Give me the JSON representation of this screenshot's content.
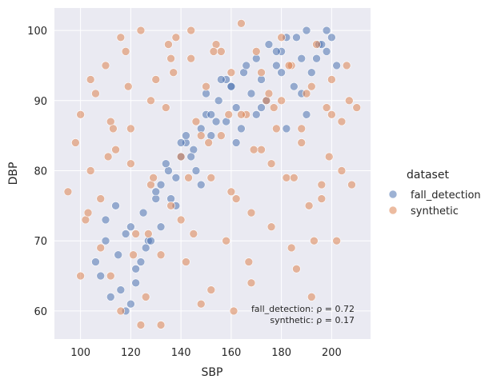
{
  "chart_data": {
    "type": "scatter",
    "title": "",
    "xlabel": "SBP",
    "ylabel": "DBP",
    "xlim": [
      89.6,
      215.5
    ],
    "ylim": [
      56,
      103.2
    ],
    "xticks": [
      "100",
      "120",
      "140",
      "160",
      "180",
      "200"
    ],
    "yticks": [
      "60",
      "70",
      "80",
      "90",
      "100"
    ],
    "grid": true,
    "legend": {
      "title": "dataset",
      "placement": "right",
      "entries": [
        "fall_detection",
        "synthetic"
      ]
    },
    "annotations": [
      "fall_detection: ρ = 0.72",
      "synthetic: ρ = 0.17"
    ],
    "colors": {
      "fall_detection": "#4c72b0",
      "synthetic": "#dd8452",
      "background": "#eaeaf2"
    },
    "series": [
      {
        "name": "fall_detection",
        "x": [
          106,
          108,
          110,
          112,
          115,
          118,
          120,
          122,
          125,
          127,
          130,
          132,
          135,
          138,
          140,
          142,
          145,
          148,
          150,
          152,
          155,
          158,
          160,
          162,
          165,
          168,
          170,
          172,
          175,
          178,
          180,
          182,
          185,
          188,
          190,
          192,
          195,
          198,
          200,
          202,
          110,
          114,
          118,
          122,
          126,
          130,
          134,
          138,
          142,
          146,
          150,
          154,
          158,
          162,
          166,
          170,
          174,
          178,
          182,
          186,
          190,
          194,
          198,
          116,
          124,
          132,
          140,
          148,
          156,
          164,
          172,
          180,
          188,
          196,
          120,
          128,
          136,
          144,
          152,
          160
        ],
        "y": [
          67,
          65,
          70,
          62,
          68,
          60,
          72,
          66,
          74,
          70,
          76,
          78,
          80,
          79,
          82,
          84,
          83,
          86,
          88,
          85,
          90,
          87,
          92,
          89,
          94,
          91,
          96,
          93,
          98,
          95,
          97,
          99,
          92,
          96,
          100,
          94,
          98,
          97,
          99,
          95,
          73,
          75,
          71,
          64,
          69,
          77,
          81,
          75,
          85,
          80,
          91,
          87,
          93,
          84,
          95,
          88,
          90,
          97,
          86,
          99,
          88,
          96,
          100,
          63,
          67,
          72,
          84,
          78,
          93,
          86,
          89,
          94,
          91,
          98,
          61,
          70,
          76,
          82,
          88,
          92
        ]
      },
      {
        "name": "synthetic",
        "x": [
          95,
          98,
          100,
          102,
          104,
          106,
          108,
          110,
          112,
          114,
          116,
          118,
          120,
          122,
          124,
          126,
          128,
          130,
          132,
          134,
          136,
          138,
          140,
          142,
          144,
          146,
          148,
          150,
          152,
          154,
          156,
          158,
          160,
          162,
          164,
          166,
          168,
          170,
          172,
          174,
          176,
          178,
          180,
          182,
          184,
          186,
          188,
          190,
          192,
          194,
          196,
          198,
          200,
          202,
          204,
          206,
          208,
          210,
          100,
          104,
          108,
          112,
          116,
          120,
          124,
          128,
          132,
          136,
          140,
          144,
          148,
          152,
          156,
          160,
          164,
          168,
          172,
          176,
          180,
          184,
          188,
          192,
          196,
          200,
          204,
          103,
          111,
          119,
          127,
          135,
          143,
          151,
          159,
          167,
          175,
          183,
          191,
          199,
          207,
          113,
          121,
          129,
          137,
          145,
          153,
          161,
          169,
          177,
          185,
          193
        ],
        "y": [
          77,
          84,
          88,
          73,
          80,
          91,
          69,
          95,
          65,
          83,
          60,
          97,
          86,
          71,
          100,
          62,
          78,
          93,
          58,
          89,
          75,
          99,
          82,
          67,
          96,
          87,
          61,
          92,
          79,
          98,
          85,
          70,
          94,
          76,
          101,
          88,
          64,
          97,
          83,
          90,
          72,
          86,
          99,
          79,
          95,
          66,
          84,
          91,
          62,
          98,
          76,
          89,
          93,
          70,
          87,
          95,
          78,
          89,
          65,
          93,
          76,
          87,
          99,
          81,
          58,
          90,
          68,
          96,
          73,
          100,
          85,
          63,
          97,
          77,
          88,
          74,
          94,
          81,
          90,
          69,
          86,
          92,
          78,
          88,
          80,
          74,
          82,
          92,
          71,
          98,
          79,
          84,
          88,
          67,
          91,
          95,
          75,
          82,
          90,
          86,
          68,
          79,
          94,
          71,
          97,
          60,
          83,
          89,
          79,
          70
        ]
      }
    ]
  }
}
